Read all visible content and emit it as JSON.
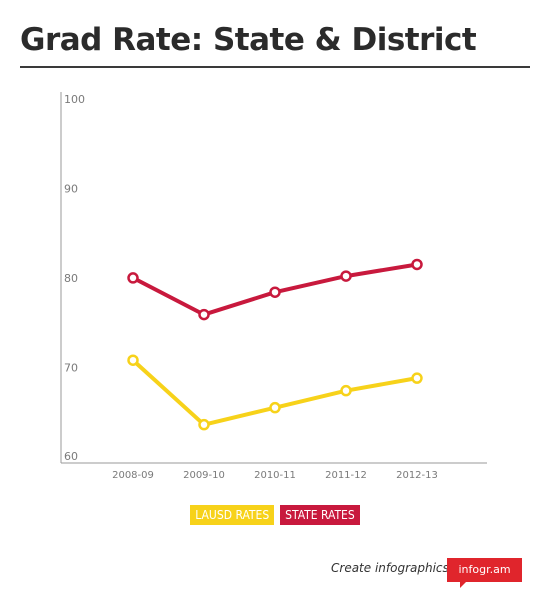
{
  "header": {
    "title": "Grad Rate: State & District"
  },
  "chart_data": {
    "type": "line",
    "categories": [
      "2008-09",
      "2009-10",
      "2010-11",
      "2011-12",
      "2012-13"
    ],
    "ylim": [
      60,
      100
    ],
    "yticks": [
      60,
      70,
      80,
      90,
      100
    ],
    "grid": false,
    "series": [
      {
        "name": "LAUSD RATES",
        "color": "#f7d21a",
        "values": [
          70.7,
          63.5,
          65.4,
          67.3,
          68.7
        ]
      },
      {
        "name": "STATE RATES",
        "color": "#c8193d",
        "values": [
          79.9,
          75.8,
          78.3,
          80.1,
          81.4
        ]
      }
    ],
    "legend_position": "bottom"
  },
  "legend": {
    "lausd_label": "LAUSD RATES",
    "state_label": "STATE RATES"
  },
  "footer": {
    "cta": "Create infographics",
    "badge": "infogr.am"
  }
}
